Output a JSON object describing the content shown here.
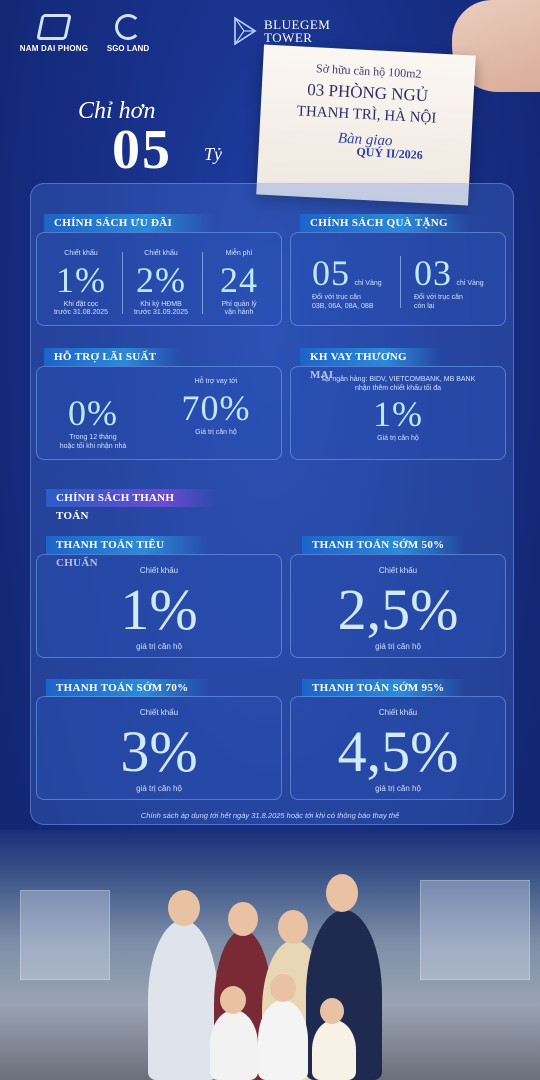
{
  "header": {
    "logo_left": "NAM DAI PHONG",
    "logo_mid": "SGO LAND",
    "logo_right_1": "BLUEGEM",
    "logo_right_2": "TOWER"
  },
  "card": {
    "line1": "Sở hữu căn hộ 100m2",
    "line2": "03 PHÒNG NGỦ",
    "line3": "THANH TRÌ, HÀ NỘI",
    "line4": "Bàn giao",
    "line5": "QUÝ II/2026"
  },
  "price": {
    "prefix": "Chỉ hơn",
    "value": "05",
    "unit": "Tỷ"
  },
  "uu_dai": {
    "label": "CHÍNH SÁCH ƯU ĐÃI",
    "items": [
      {
        "top": "Chiết khấu",
        "value": "1%",
        "note1": "Khi đặt cọc",
        "note2": "trước 31.08.2025"
      },
      {
        "top": "Chiết khấu",
        "value": "2%",
        "note1": "Khi ký HĐMB",
        "note2": "trước 31.09.2025"
      },
      {
        "top": "Miễn phí",
        "value": "24",
        "note1": "Phí quản lý",
        "note2": "vận hành"
      }
    ]
  },
  "qua_tang": {
    "label": "CHÍNH SÁCH QUÀ TẶNG",
    "items": [
      {
        "value": "05",
        "unit": "chỉ Vàng",
        "note1": "Đối với trục căn",
        "note2": "03B, 06A, 08A, 08B"
      },
      {
        "value": "03",
        "unit": "chỉ Vàng",
        "note1": "Đối với trục căn",
        "note2": "còn lại"
      }
    ]
  },
  "lai_suat": {
    "label": "HỖ TRỢ LÃI SUẤT",
    "left_value": "0%",
    "left_note1": "Trong 12 tháng",
    "left_note2": "hoặc tối khi nhận nhà",
    "right_top": "Hỗ trợ vay tới",
    "right_value": "70%",
    "right_note": "Giá trị căn hộ"
  },
  "kh_vay": {
    "label": "KH VAY THƯƠNG MẠI",
    "note1": "Tại ngân hàng: BIDV, VIETCOMBANK, MB BANK",
    "note2": "nhận thêm chiết khấu tối đa",
    "value": "1%",
    "note3": "Giá trị căn hộ"
  },
  "thanh_toan": {
    "section_label": "CHÍNH SÁCH THANH TOÁN",
    "items": [
      {
        "label": "THANH TOÁN TIÊU CHUẨN",
        "top": "Chiết khấu",
        "value": "1%",
        "bottom": "giá trị căn hộ"
      },
      {
        "label": "THANH TOÁN SỚM 50%",
        "top": "Chiết khấu",
        "value": "2,5%",
        "bottom": "giá trị căn hộ"
      },
      {
        "label": "THANH TOÁN SỚM 70%",
        "top": "Chiết khấu",
        "value": "3%",
        "bottom": "giá trị căn hộ"
      },
      {
        "label": "THANH TOÁN SỚM 95%",
        "top": "Chiết khấu",
        "value": "4,5%",
        "bottom": "giá trị căn hộ"
      }
    ]
  },
  "footnote": "Chính sách áp dụng tới hết ngày 31.8.2025 hoặc tới khi có thông báo thay thế"
}
